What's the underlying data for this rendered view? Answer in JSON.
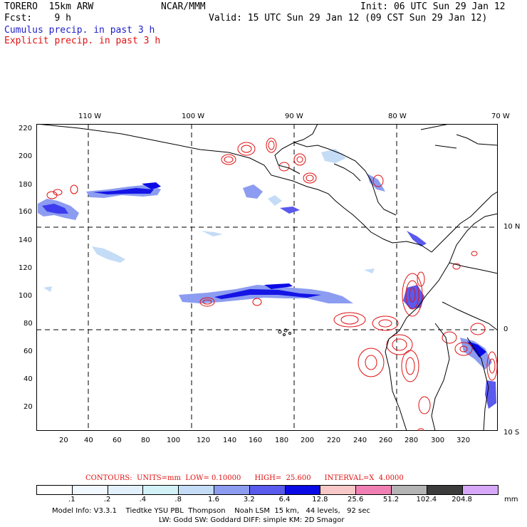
{
  "header": {
    "model": "TORERO  15km ARW",
    "center": "NCAR/MMM",
    "init": "Init: 06 UTC Sun 29 Jan 12",
    "fcst": "Fcst:    9 h",
    "valid": "Valid: 15 UTC Sun 29 Jan 12 (09 CST Sun 29 Jan 12)",
    "cumulus": "Cumulus precip. in past 3 h",
    "explicit": "Explicit precip. in past 3 h"
  },
  "map": {
    "lon_labels": [
      "110 W",
      "100 W",
      "90 W",
      "80 W",
      "70 W"
    ],
    "lat_labels": [
      "10 N",
      "0",
      "10 S"
    ],
    "y_ticks": [
      "220",
      "200",
      "180",
      "160",
      "140",
      "120",
      "100",
      "80",
      "60",
      "40",
      "20"
    ],
    "x_ticks": [
      "20",
      "40",
      "60",
      "80",
      "100",
      "120",
      "140",
      "160",
      "180",
      "200",
      "220",
      "240",
      "260",
      "280",
      "300",
      "320"
    ],
    "colors": {
      "land": "#000000",
      "grid": "#000000",
      "cumulus": "#1e1ec8",
      "explicit": "#e01010"
    }
  },
  "contours": {
    "text": "CONTOURS:  UNITS=mm  LOW= 0.10000      HIGH=  25.600      INTERVAL=X  4.0000"
  },
  "colorbar": {
    "labels": [
      ".1",
      ".2",
      ".4",
      ".8",
      "1.6",
      "3.2",
      "6.4",
      "12.8",
      "25.6",
      "51.2",
      "102.4",
      "204.8"
    ],
    "unit": "mm",
    "colors": [
      "#ffffff",
      "#f2f8ff",
      "#e2f0fb",
      "#d2f2f8",
      "#c4dcf6",
      "#8c9cf0",
      "#5a5aee",
      "#0a0ae6",
      "#f8c8c8",
      "#f080b4",
      "#b4b4b4",
      "#3c3c3c",
      "#d8a8f8"
    ]
  },
  "footer": {
    "line1": "Model Info: V3.3.1    Tiedtke YSU PBL  Thompson    Noah LSM  15 km,   44 levels,   92 sec",
    "line2": "LW: Godd SW: Goddard DIFF: simple KM: 2D Smagor"
  }
}
